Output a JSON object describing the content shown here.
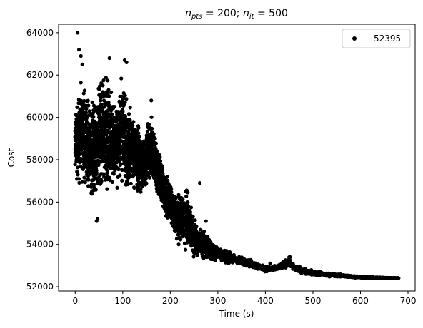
{
  "chart_data": {
    "type": "scatter",
    "title_parts": {
      "n1": "n",
      "s1": "pts",
      "eq1": " = 200; ",
      "n2": "n",
      "s2": "it",
      "eq2": " = 500"
    },
    "xlabel": "Time (s)",
    "ylabel": "Cost",
    "xlim": [
      -35,
      715
    ],
    "ylim": [
      51800,
      64400
    ],
    "xticks": [
      0,
      100,
      200,
      300,
      400,
      500,
      600,
      700
    ],
    "yticks": [
      52000,
      54000,
      56000,
      58000,
      60000,
      62000,
      64000
    ],
    "grid": false,
    "legend_position": "top-right",
    "marker_color": "#000000",
    "series": [
      {
        "name": "52395",
        "envelope": [
          [
            0,
            57000,
            60500
          ],
          [
            10,
            56500,
            62000
          ],
          [
            20,
            56500,
            61800
          ],
          [
            30,
            56000,
            61000
          ],
          [
            40,
            55500,
            61500
          ],
          [
            50,
            56000,
            62000
          ],
          [
            60,
            56500,
            62600
          ],
          [
            70,
            56000,
            62500
          ],
          [
            80,
            56500,
            61000
          ],
          [
            90,
            56500,
            60800
          ],
          [
            100,
            56500,
            62700
          ],
          [
            110,
            56000,
            61000
          ],
          [
            120,
            56500,
            60500
          ],
          [
            130,
            56000,
            60200
          ],
          [
            140,
            56000,
            59500
          ],
          [
            150,
            56500,
            59800
          ],
          [
            160,
            56800,
            60500
          ],
          [
            170,
            56300,
            59200
          ],
          [
            180,
            55500,
            58500
          ],
          [
            190,
            55000,
            57500
          ],
          [
            200,
            55000,
            57000
          ],
          [
            210,
            54000,
            56500
          ],
          [
            220,
            53800,
            56800
          ],
          [
            230,
            53500,
            57000
          ],
          [
            240,
            53500,
            56500
          ],
          [
            250,
            53200,
            55500
          ],
          [
            260,
            53300,
            55000
          ],
          [
            270,
            53000,
            55000
          ],
          [
            280,
            53300,
            54500
          ],
          [
            290,
            53100,
            54200
          ],
          [
            300,
            53300,
            53900
          ],
          [
            320,
            53000,
            53800
          ],
          [
            340,
            53000,
            53500
          ],
          [
            360,
            52900,
            53400
          ],
          [
            380,
            52800,
            53200
          ],
          [
            400,
            52700,
            53000
          ],
          [
            420,
            52700,
            53000
          ],
          [
            440,
            52800,
            53300
          ],
          [
            450,
            52900,
            53450
          ],
          [
            460,
            52700,
            53100
          ],
          [
            480,
            52600,
            52900
          ],
          [
            500,
            52500,
            52800
          ],
          [
            520,
            52500,
            52700
          ],
          [
            540,
            52450,
            52650
          ],
          [
            560,
            52450,
            52600
          ],
          [
            580,
            52420,
            52550
          ],
          [
            600,
            52400,
            52520
          ],
          [
            620,
            52400,
            52480
          ],
          [
            640,
            52400,
            52450
          ],
          [
            660,
            52395,
            52430
          ],
          [
            680,
            52395,
            52420
          ]
        ],
        "outliers": [
          [
            5,
            64000
          ],
          [
            8,
            63200
          ],
          [
            12,
            62900
          ],
          [
            15,
            62500
          ],
          [
            45,
            55100
          ],
          [
            47,
            55200
          ],
          [
            72,
            62800
          ],
          [
            104,
            62700
          ],
          [
            108,
            62600
          ],
          [
            160,
            60800
          ],
          [
            232,
            56500
          ],
          [
            262,
            56900
          ],
          [
            275,
            55100
          ],
          [
            410,
            53100
          ],
          [
            452,
            53400
          ]
        ]
      }
    ]
  }
}
